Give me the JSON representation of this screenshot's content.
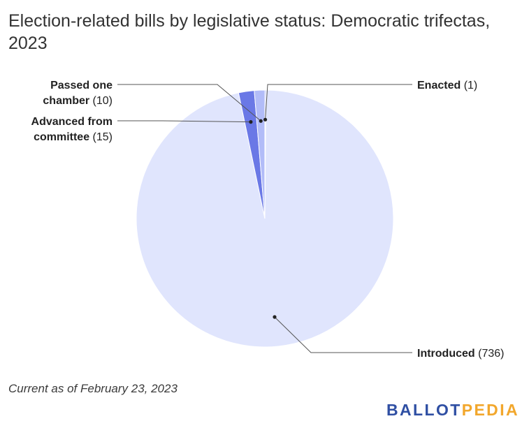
{
  "title": "Election-related bills by legislative status: Democratic trifectas, 2023",
  "footnote": "Current as of February 23, 2023",
  "brand": {
    "part1": "BALLOT",
    "part2": "PEDIA",
    "color1": "#2f4fa3",
    "color2": "#f2a72c"
  },
  "chart_data": {
    "type": "pie",
    "title": "Election-related bills by legislative status: Democratic trifectas, 2023",
    "slices": [
      {
        "label": "Enacted",
        "value": 1,
        "display": "(1)",
        "color": "#8e98ef"
      },
      {
        "label": "Introduced",
        "value": 736,
        "display": "(736)",
        "color": "#e0e5fd"
      },
      {
        "label": "Advanced from committee",
        "value": 15,
        "display": "(15)",
        "color": "#6a78e6"
      },
      {
        "label": "Passed one chamber",
        "value": 10,
        "display": "(10)",
        "color": "#b2bcf8"
      }
    ]
  }
}
